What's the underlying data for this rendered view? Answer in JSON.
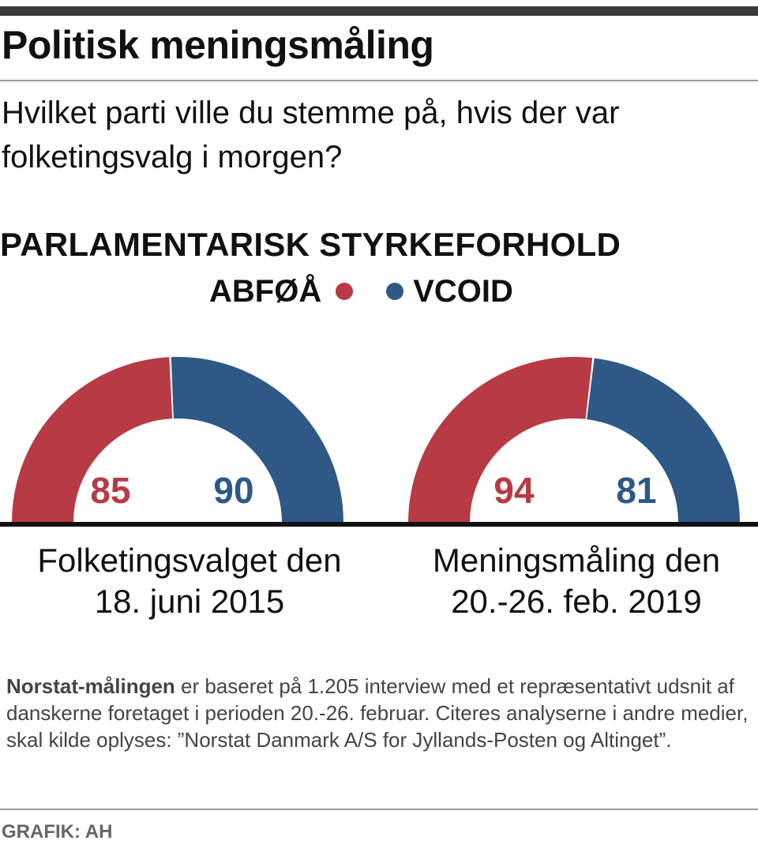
{
  "title": "Politisk meningsmåling",
  "question": "Hvilket parti ville du stemme på, hvis der var folketingsvalg i morgen?",
  "colors": {
    "left_bloc": "#b83a44",
    "right_bloc": "#2e5885",
    "baseline": "#111111"
  },
  "chart_data": {
    "type": "pie",
    "subtype": "half-donut",
    "title": "PARLAMENTARISK STYRKEFORHOLD",
    "legend": [
      {
        "label": "ABFØÅ",
        "color": "#b83a44"
      },
      {
        "label": "VCOID",
        "color": "#2e5885"
      }
    ],
    "charts": [
      {
        "label": "Folketingsvalget den 18. juni 2015",
        "series": [
          {
            "name": "ABFØÅ",
            "value": 85
          },
          {
            "name": "VCOID",
            "value": 90
          }
        ]
      },
      {
        "label": "Meningsmåling den 20.-26. feb. 2019",
        "series": [
          {
            "name": "ABFØÅ",
            "value": 94
          },
          {
            "name": "VCOID",
            "value": 81
          }
        ]
      }
    ]
  },
  "footnote": {
    "lead": "Norstat-målingen",
    "text": " er baseret på 1.205 interview med et repræsentativt udsnit af danskerne foretaget i perioden 20.-26. februar. Citeres analyserne i andre medier, skal kilde oplyses: ”Norstat Danmark A/S for Jyllands-Posten og Altinget”."
  },
  "credit": "GRAFIK: AH"
}
